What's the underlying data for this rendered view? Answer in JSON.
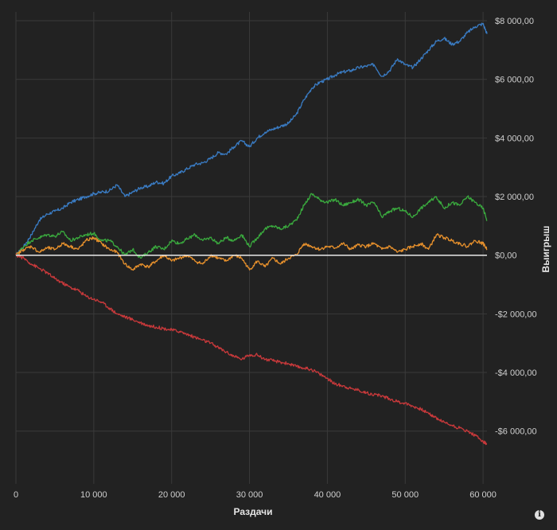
{
  "chart_data": {
    "type": "line",
    "title": "",
    "xlabel": "Раздачи",
    "ylabel": "Выигрыш",
    "xlim": [
      0,
      60500
    ],
    "ylim": [
      -7800,
      8300
    ],
    "grid": true,
    "x_ticks": [
      {
        "value": 0,
        "label": "0"
      },
      {
        "value": 10000,
        "label": "10 000"
      },
      {
        "value": 20000,
        "label": "20 000"
      },
      {
        "value": 30000,
        "label": "30 000"
      },
      {
        "value": 40000,
        "label": "40 000"
      },
      {
        "value": 50000,
        "label": "50 000"
      },
      {
        "value": 60000,
        "label": "60 000"
      }
    ],
    "y_ticks": [
      {
        "value": 8000,
        "label": "$8 000,00"
      },
      {
        "value": 6000,
        "label": "$6 000,00"
      },
      {
        "value": 4000,
        "label": "$4 000,00"
      },
      {
        "value": 2000,
        "label": "$2 000,00"
      },
      {
        "value": 0,
        "label": "$0,00"
      },
      {
        "value": -2000,
        "label": "-$2 000,00"
      },
      {
        "value": -4000,
        "label": "-$4 000,00"
      },
      {
        "value": -6000,
        "label": "-$6 000,00"
      }
    ],
    "series": [
      {
        "color": "#3a7cc4",
        "x": [
          0,
          1000,
          2000,
          3000,
          4000,
          5000,
          6000,
          7000,
          8000,
          9000,
          10000,
          11000,
          12000,
          13000,
          14000,
          15000,
          16000,
          17000,
          18000,
          19000,
          20000,
          21000,
          22000,
          23000,
          24000,
          25000,
          26000,
          27000,
          28000,
          29000,
          30000,
          31000,
          32000,
          33000,
          34000,
          35000,
          36000,
          37000,
          38000,
          39000,
          40000,
          41000,
          42000,
          43000,
          44000,
          45000,
          46000,
          47000,
          48000,
          49000,
          50000,
          51000,
          52000,
          53000,
          54000,
          55000,
          56000,
          57000,
          58000,
          59000,
          60000,
          60500
        ],
        "values": [
          0,
          300,
          700,
          1200,
          1400,
          1500,
          1600,
          1800,
          1900,
          2000,
          2100,
          2150,
          2200,
          2400,
          2000,
          2150,
          2300,
          2350,
          2500,
          2450,
          2700,
          2800,
          2950,
          3100,
          3150,
          3300,
          3500,
          3450,
          3700,
          3900,
          3700,
          4000,
          4200,
          4300,
          4400,
          4500,
          4800,
          5300,
          5700,
          5900,
          6000,
          6150,
          6250,
          6300,
          6400,
          6450,
          6500,
          6100,
          6300,
          6700,
          6500,
          6400,
          6700,
          7000,
          7300,
          7400,
          7200,
          7300,
          7600,
          7800,
          7900,
          7550
        ]
      },
      {
        "color": "#3aaa3e",
        "x": [
          0,
          1000,
          2000,
          3000,
          4000,
          5000,
          6000,
          7000,
          8000,
          9000,
          10000,
          11000,
          12000,
          13000,
          14000,
          15000,
          16000,
          17000,
          18000,
          19000,
          20000,
          21000,
          22000,
          23000,
          24000,
          25000,
          26000,
          27000,
          28000,
          29000,
          30000,
          31000,
          32000,
          33000,
          34000,
          35000,
          36000,
          37000,
          38000,
          39000,
          40000,
          41000,
          42000,
          43000,
          44000,
          45000,
          46000,
          47000,
          48000,
          49000,
          50000,
          51000,
          52000,
          53000,
          54000,
          55000,
          56000,
          57000,
          58000,
          59000,
          60000,
          60500
        ],
        "values": [
          0,
          300,
          500,
          600,
          700,
          650,
          800,
          500,
          600,
          700,
          750,
          500,
          500,
          300,
          0,
          200,
          -100,
          100,
          300,
          200,
          500,
          400,
          550,
          700,
          500,
          600,
          400,
          600,
          500,
          700,
          300,
          600,
          900,
          1000,
          900,
          1000,
          1200,
          1700,
          2100,
          1900,
          1800,
          1900,
          1700,
          1800,
          1900,
          1700,
          1800,
          1300,
          1500,
          1600,
          1500,
          1300,
          1600,
          1800,
          2000,
          1600,
          1800,
          1700,
          2000,
          1800,
          1600,
          1200
        ]
      },
      {
        "color": "#e8912c",
        "x": [
          0,
          1000,
          2000,
          3000,
          4000,
          5000,
          6000,
          7000,
          8000,
          9000,
          10000,
          11000,
          12000,
          13000,
          14000,
          15000,
          16000,
          17000,
          18000,
          19000,
          20000,
          21000,
          22000,
          23000,
          24000,
          25000,
          26000,
          27000,
          28000,
          29000,
          30000,
          31000,
          32000,
          33000,
          34000,
          35000,
          36000,
          37000,
          38000,
          39000,
          40000,
          41000,
          42000,
          43000,
          44000,
          45000,
          46000,
          47000,
          48000,
          49000,
          50000,
          51000,
          52000,
          53000,
          54000,
          55000,
          56000,
          57000,
          58000,
          59000,
          60000,
          60500
        ],
        "values": [
          0,
          200,
          300,
          100,
          250,
          200,
          400,
          300,
          200,
          500,
          600,
          400,
          200,
          100,
          -300,
          -500,
          -300,
          -400,
          -200,
          0,
          -200,
          -100,
          0,
          -200,
          -300,
          0,
          -100,
          -200,
          0,
          -100,
          -500,
          -200,
          -400,
          -100,
          -300,
          -100,
          0,
          400,
          300,
          200,
          300,
          250,
          400,
          200,
          350,
          300,
          400,
          200,
          300,
          100,
          200,
          300,
          400,
          200,
          700,
          600,
          500,
          400,
          300,
          500,
          400,
          200
        ]
      },
      {
        "color": "#c9393b",
        "x": [
          0,
          1000,
          2000,
          3000,
          4000,
          5000,
          6000,
          7000,
          8000,
          9000,
          10000,
          11000,
          12000,
          13000,
          14000,
          15000,
          16000,
          17000,
          18000,
          19000,
          20000,
          21000,
          22000,
          23000,
          24000,
          25000,
          26000,
          27000,
          28000,
          29000,
          30000,
          31000,
          32000,
          33000,
          34000,
          35000,
          36000,
          37000,
          38000,
          39000,
          40000,
          41000,
          42000,
          43000,
          44000,
          45000,
          46000,
          47000,
          48000,
          49000,
          50000,
          51000,
          52000,
          53000,
          54000,
          55000,
          56000,
          57000,
          58000,
          59000,
          60000,
          60500
        ],
        "values": [
          0,
          -100,
          -300,
          -450,
          -600,
          -800,
          -950,
          -1100,
          -1200,
          -1400,
          -1500,
          -1600,
          -1800,
          -2000,
          -2100,
          -2200,
          -2300,
          -2400,
          -2450,
          -2500,
          -2550,
          -2600,
          -2700,
          -2800,
          -2900,
          -3000,
          -3150,
          -3300,
          -3450,
          -3550,
          -3400,
          -3400,
          -3550,
          -3600,
          -3650,
          -3700,
          -3800,
          -3850,
          -3900,
          -4050,
          -4200,
          -4400,
          -4450,
          -4550,
          -4600,
          -4700,
          -4750,
          -4800,
          -4900,
          -5000,
          -5050,
          -5150,
          -5250,
          -5400,
          -5550,
          -5700,
          -5800,
          -5900,
          -6000,
          -6150,
          -6350,
          -6450
        ]
      }
    ]
  },
  "colors": {
    "background": "#222222",
    "grid": "#3a3a3a",
    "zero_line": "#e8e8e8",
    "text": "#cfcfcf"
  },
  "info_icon": {
    "icon": "info-icon",
    "glyph": "i"
  }
}
